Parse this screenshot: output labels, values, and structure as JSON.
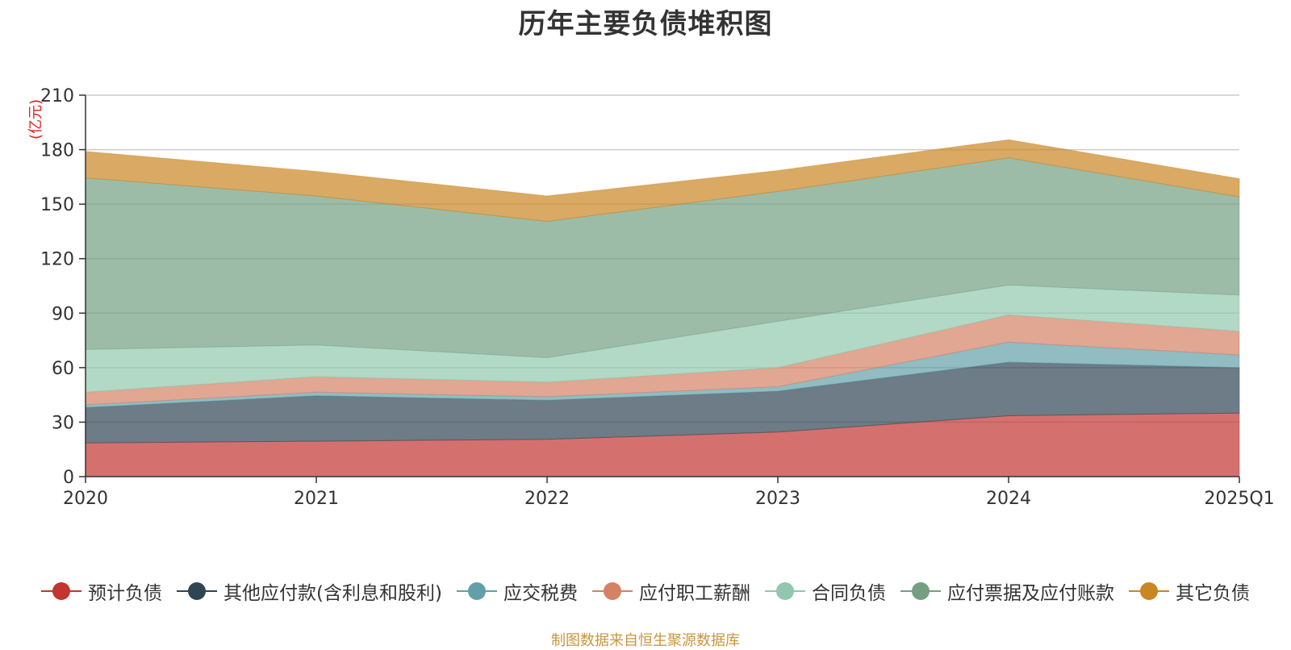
{
  "chart_data": {
    "type": "area",
    "stacked": true,
    "title": "历年主要负债堆积图",
    "ylabel": "(亿元)",
    "xlabel": "",
    "ylim": [
      0,
      210
    ],
    "yticks": [
      0,
      30,
      60,
      90,
      120,
      150,
      180,
      210
    ],
    "grid": true,
    "legend_position": "bottom",
    "categories": [
      "2020",
      "2021",
      "2022",
      "2023",
      "2024",
      "2025Q1"
    ],
    "series": [
      {
        "name": "预计负债",
        "color": "#c23531",
        "values": [
          18.5,
          19.5,
          20.5,
          24.5,
          33.5,
          35
        ]
      },
      {
        "name": "其他应付款(含利息和股利)",
        "color": "#2f4554",
        "values": [
          19.5,
          25,
          21.5,
          22.5,
          29.5,
          25
        ]
      },
      {
        "name": "应交税费",
        "color": "#61a0a8",
        "values": [
          1.5,
          2,
          2,
          2.5,
          11,
          7
        ]
      },
      {
        "name": "应付职工薪酬",
        "color": "#d48265",
        "values": [
          7,
          8.5,
          8,
          10.5,
          15,
          13
        ]
      },
      {
        "name": "合同负债",
        "color": "#91c7ae",
        "values": [
          23.5,
          17.5,
          13.5,
          25.5,
          16.5,
          20
        ]
      },
      {
        "name": "应付票据及应付账款",
        "color": "#749f83",
        "values": [
          94.5,
          82,
          75,
          71.5,
          70,
          54
        ]
      },
      {
        "name": "其它负债",
        "color": "#ca8622",
        "values": [
          14.5,
          13.5,
          14,
          11.5,
          10,
          10
        ]
      }
    ],
    "source_note": "制图数据来自恒生聚源数据库"
  }
}
